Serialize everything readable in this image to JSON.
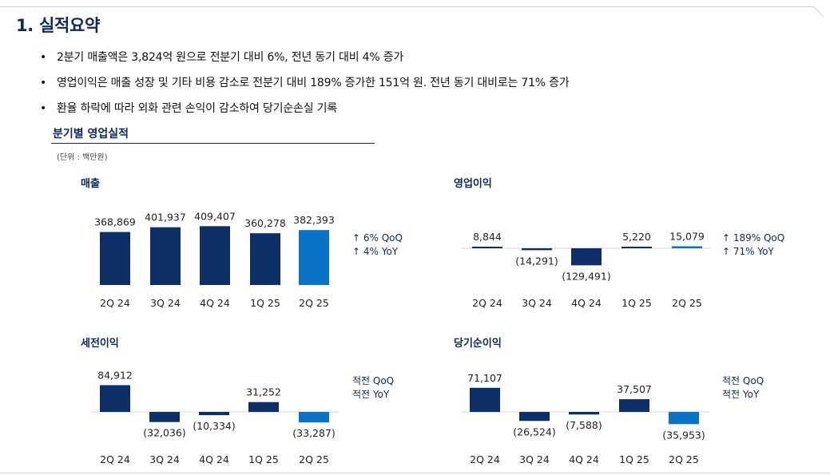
{
  "page": {
    "title": "1. 실적요약",
    "bullets": [
      "2분기 매출액은 3,824억 원으로 전분기 대비 6%, 전년 동기 대비 4% 증가",
      "영업이익은 매출 성장 및 기타 비용 감소로 전분기 대비 189% 증가한 151억 원. 전년 동기 대비로는 71% 증가",
      "환율 하락에 따라 외화 관련 손익이 감소하여 당기순손실 기록"
    ],
    "section_title": "분기별 영업실적",
    "unit": "(단위 : 백만원)"
  },
  "colors": {
    "bar": "#0b2f66",
    "highlight": "#0a72c7",
    "title": "#0b2a5c"
  },
  "chart_data": [
    {
      "type": "bar",
      "title": "매출",
      "categories": [
        "2Q 24",
        "3Q 24",
        "4Q 24",
        "1Q 25",
        "2Q 25"
      ],
      "values": [
        368869,
        401937,
        409407,
        360278,
        382393
      ],
      "labels": [
        "368,869",
        "401,937",
        "409,407",
        "360,278",
        "382,393"
      ],
      "highlight_index": 4,
      "notes": [
        "↑ 6% QoQ",
        "↑ 4% YoY"
      ]
    },
    {
      "type": "bar",
      "title": "영업이익",
      "categories": [
        "2Q 24",
        "3Q 24",
        "4Q 24",
        "1Q 25",
        "2Q 25"
      ],
      "values": [
        8844,
        -14291,
        -129491,
        5220,
        15079
      ],
      "labels": [
        "8,844",
        "(14,291)",
        "(129,491)",
        "5,220",
        "15,079"
      ],
      "highlight_index": 4,
      "notes": [
        "↑ 189% QoQ",
        "↑ 71% YoY"
      ]
    },
    {
      "type": "bar",
      "title": "세전이익",
      "categories": [
        "2Q 24",
        "3Q 24",
        "4Q 24",
        "1Q 25",
        "2Q 25"
      ],
      "values": [
        84912,
        -32036,
        -10334,
        31252,
        -33287
      ],
      "labels": [
        "84,912",
        "(32,036)",
        "(10,334)",
        "31,252",
        "(33,287)"
      ],
      "highlight_index": 4,
      "notes": [
        "적전 QoQ",
        "적전 YoY"
      ]
    },
    {
      "type": "bar",
      "title": "당기순이익",
      "categories": [
        "2Q 24",
        "3Q 24",
        "4Q 24",
        "1Q 25",
        "2Q 25"
      ],
      "values": [
        71107,
        -26524,
        -7588,
        37507,
        -35953
      ],
      "labels": [
        "71,107",
        "(26,524)",
        "(7,588)",
        "37,507",
        "(35,953)"
      ],
      "highlight_index": 4,
      "notes": [
        "적전 QoQ",
        "적전 YoY"
      ]
    }
  ]
}
